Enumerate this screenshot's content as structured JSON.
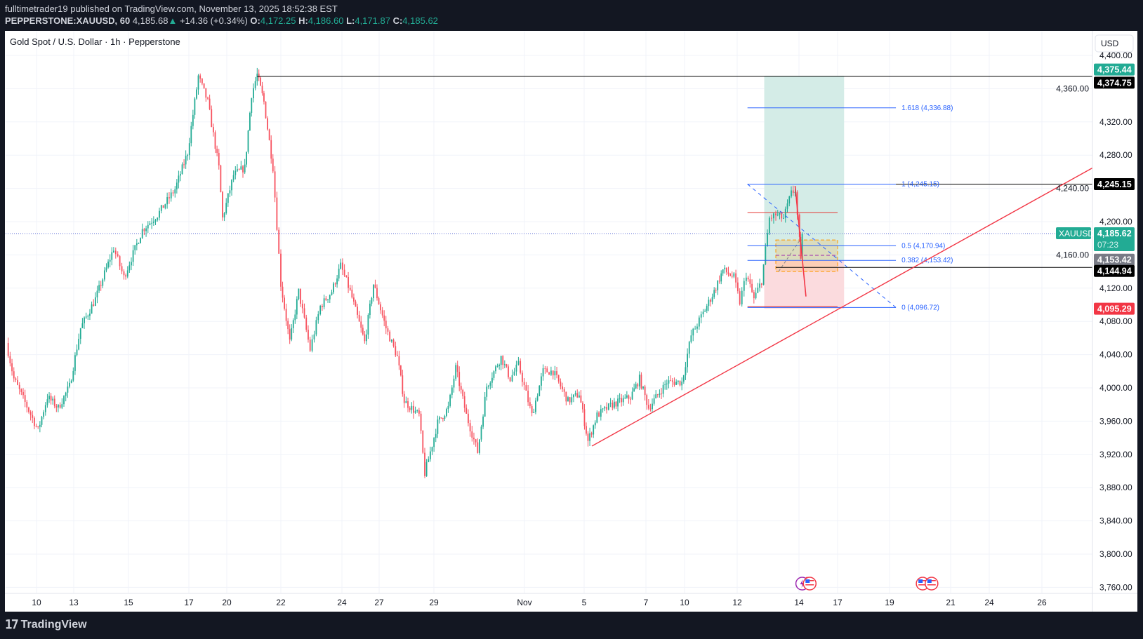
{
  "header": {
    "publisher_line": "fulltimetrader19 published on TradingView.com, November 13, 2025 18:52:38 EST",
    "symbol": "PEPPERSTONE:XAUUSD, 60",
    "last": "4,185.68",
    "change": "+14.36 (+0.34%)",
    "open_label": "O:",
    "open": "4,172.25",
    "high_label": "H:",
    "high": "4,186.60",
    "low_label": "L:",
    "low": "4,171.87",
    "close_label": "C:",
    "close": "4,185.62",
    "up_arrow_icon": "triangle-up-icon"
  },
  "footer": {
    "logo_text": "TradingView",
    "logo_icon": "tradingview-logo-icon"
  },
  "colors": {
    "up": "#22ab94",
    "down": "#f7525f",
    "fib": "#2962ff",
    "long_profit": "#d2ebe6",
    "long_loss": "#fbd9dc",
    "trendline": "#f23645"
  },
  "chart_data": {
    "type": "candlestick",
    "title": "Gold Spot / U.S. Dollar · 1h · Pepperstone",
    "currency": "USD",
    "ylim": [
      3740,
      4410
    ],
    "grid": true,
    "y_ticks": [
      "3,760.00",
      "3,800.00",
      "3,840.00",
      "3,880.00",
      "3,920.00",
      "3,960.00",
      "4,000.00",
      "4,040.00",
      "4,080.00",
      "4,120.00",
      "4,160.00",
      "4,200.00",
      "4,240.00",
      "4,280.00",
      "4,320.00",
      "4,360.00",
      "4,400.00"
    ],
    "x_ticks": [
      {
        "label": "10",
        "date": "10-10"
      },
      {
        "label": "13",
        "date": "10-13"
      },
      {
        "label": "15",
        "date": "10-15"
      },
      {
        "label": "17",
        "date": "10-17"
      },
      {
        "label": "20",
        "date": "10-20"
      },
      {
        "label": "22",
        "date": "10-22"
      },
      {
        "label": "24",
        "date": "10-24"
      },
      {
        "label": "27",
        "date": "10-27"
      },
      {
        "label": "29",
        "date": "10-29"
      },
      {
        "label": "Nov",
        "date": "11-03"
      },
      {
        "label": "5",
        "date": "11-05"
      },
      {
        "label": "7",
        "date": "11-07"
      },
      {
        "label": "10",
        "date": "11-10"
      },
      {
        "label": "12",
        "date": "11-12"
      },
      {
        "label": "14",
        "date": "11-14"
      },
      {
        "label": "17",
        "date": "11-17"
      },
      {
        "label": "19",
        "date": "11-19"
      },
      {
        "label": "21",
        "date": "11-21"
      },
      {
        "label": "24",
        "date": "11-24"
      },
      {
        "label": "26",
        "date": "11-26"
      }
    ],
    "price_path": [
      [
        "10-09 00",
        4054
      ],
      [
        "10-09 06",
        4011
      ],
      [
        "10-10 03",
        3949
      ],
      [
        "10-10 21",
        3989
      ],
      [
        "10-11 18",
        3976
      ],
      [
        "10-12 16",
        4002
      ],
      [
        "10-13 06",
        4072
      ],
      [
        "10-13 19",
        4107
      ],
      [
        "10-14 11",
        4168
      ],
      [
        "10-14 20",
        4133
      ],
      [
        "10-15 11",
        4190
      ],
      [
        "10-15 23",
        4208
      ],
      [
        "10-16 13",
        4239
      ],
      [
        "10-16 23",
        4283
      ],
      [
        "10-17 18",
        4375
      ],
      [
        "10-18 12",
        4344
      ],
      [
        "10-19 09",
        4265
      ],
      [
        "10-19 16",
        4204
      ],
      [
        "10-20 06",
        4256
      ],
      [
        "10-20 16",
        4265
      ],
      [
        "10-20 22",
        4353
      ],
      [
        "10-21 03",
        4377
      ],
      [
        "10-21 09",
        4344
      ],
      [
        "10-21 17",
        4265
      ],
      [
        "10-22 00",
        4125
      ],
      [
        "10-22 07",
        4055
      ],
      [
        "10-22 14",
        4116
      ],
      [
        "10-22 23",
        4046
      ],
      [
        "10-23 07",
        4098
      ],
      [
        "10-23 16",
        4116
      ],
      [
        "10-23 23",
        4147
      ],
      [
        "10-24 16",
        4116
      ],
      [
        "10-25 20",
        4055
      ],
      [
        "10-26 13",
        4125
      ],
      [
        "10-27 06",
        4072
      ],
      [
        "10-27 16",
        4037
      ],
      [
        "10-27 22",
        3984
      ],
      [
        "10-28 11",
        3967
      ],
      [
        "10-28 16",
        3897
      ],
      [
        "10-29 05",
        3958
      ],
      [
        "10-29 19",
        3976
      ],
      [
        "10-30 05",
        4024
      ],
      [
        "10-30 19",
        3967
      ],
      [
        "10-31 10",
        3923
      ],
      [
        "10-31 22",
        4002
      ],
      [
        "11-01 17",
        4037
      ],
      [
        "11-02 05",
        4011
      ],
      [
        "11-02 16",
        4028
      ],
      [
        "11-03 06",
        3967
      ],
      [
        "11-03 15",
        4020
      ],
      [
        "11-03 23",
        4020
      ],
      [
        "11-04 11",
        3984
      ],
      [
        "11-04 20",
        3993
      ],
      [
        "11-05 03",
        3936
      ],
      [
        "11-05 10",
        3967
      ],
      [
        "11-05 22",
        3980
      ],
      [
        "11-06 12",
        3989
      ],
      [
        "11-06 19",
        4011
      ],
      [
        "11-07 05",
        3976
      ],
      [
        "11-08 15",
        4007
      ],
      [
        "11-09 19",
        4007
      ],
      [
        "11-10 06",
        4063
      ],
      [
        "11-10 17",
        4090
      ],
      [
        "11-11 03",
        4116
      ],
      [
        "11-11 11",
        4142
      ],
      [
        "11-11 21",
        4133
      ],
      [
        "11-12 02",
        4103
      ],
      [
        "11-12 07",
        4137
      ],
      [
        "11-12 13",
        4107
      ],
      [
        "11-12 19",
        4129
      ],
      [
        "11-13 01",
        4204
      ],
      [
        "11-13 06",
        4208
      ],
      [
        "11-13 12",
        4204
      ],
      [
        "11-13 18",
        4234
      ],
      [
        "11-13 21",
        4238
      ],
      [
        "11-14 01",
        4177
      ],
      [
        "11-14 03",
        4151
      ],
      [
        "11-14 06",
        4185.62
      ]
    ],
    "price_labels": [
      {
        "value": "4,375.44",
        "kind": "long-target",
        "color": "#22ab94"
      },
      {
        "value": "4,374.75",
        "kind": "horizontal-line",
        "color": "#000000"
      },
      {
        "value": "4,245.15",
        "kind": "horizontal-line",
        "color": "#000000"
      },
      {
        "value": "4,185.62",
        "kind": "last-price",
        "color": "#22ab94",
        "countdown": "07:23",
        "symbol": "XAUUSD"
      },
      {
        "value": "4,153.42",
        "kind": "long-entry",
        "color": "#787b86"
      },
      {
        "value": "4,144.94",
        "kind": "horizontal-line",
        "color": "#000000"
      },
      {
        "value": "4,095.29",
        "kind": "long-stop",
        "color": "#f23645"
      }
    ],
    "horizontal_lines": [
      {
        "price": 4374.75,
        "from": "10-21 03"
      },
      {
        "price": 4245.15,
        "from": "11-13 21"
      },
      {
        "price": 4144.94,
        "from": "11-13 06"
      }
    ],
    "long_position": {
      "from": "11-12 21",
      "to": "11-17 06",
      "target": 4375.44,
      "entry": 4153.42,
      "stop": 4095.29
    },
    "fibonacci": {
      "from": "11-12 08",
      "to": "11-19 05",
      "levels": [
        {
          "label": "1.618 (4,336.88)",
          "price": 4336.88
        },
        {
          "label": "1 (4,245.15)",
          "price": 4245.15
        },
        {
          "label": "0.5 (4,170.94)",
          "price": 4170.94
        },
        {
          "label": "0.382 (4,153.42)",
          "price": 4153.42
        },
        {
          "label": "0 (4,096.72)",
          "price": 4096.72
        }
      ]
    },
    "zone_box": {
      "from": "11-13 06",
      "to": "11-17 00",
      "top": 4178,
      "bottom": 4140,
      "mid": 4159.5
    },
    "red_levels": [
      {
        "price": 4211,
        "from": "11-12 08",
        "to": "11-17 00"
      },
      {
        "price": 4098,
        "from": "11-12 08",
        "to": "11-17 00"
      }
    ],
    "projection_line": [
      [
        "11-13 21",
        4243
      ],
      [
        "11-14 13",
        4110
      ]
    ],
    "trendline": [
      [
        "11-05 06",
        3930
      ],
      [
        "11-27 22",
        4265
      ]
    ],
    "events": [
      {
        "date": "11-14 06",
        "icon": "lightning-icon"
      },
      {
        "date": "11-14 20",
        "icon": "us-flag-icon"
      },
      {
        "date": "11-20 02",
        "icon": "us-flag-icon"
      },
      {
        "date": "11-20 09",
        "icon": "us-flag-icon"
      }
    ]
  }
}
